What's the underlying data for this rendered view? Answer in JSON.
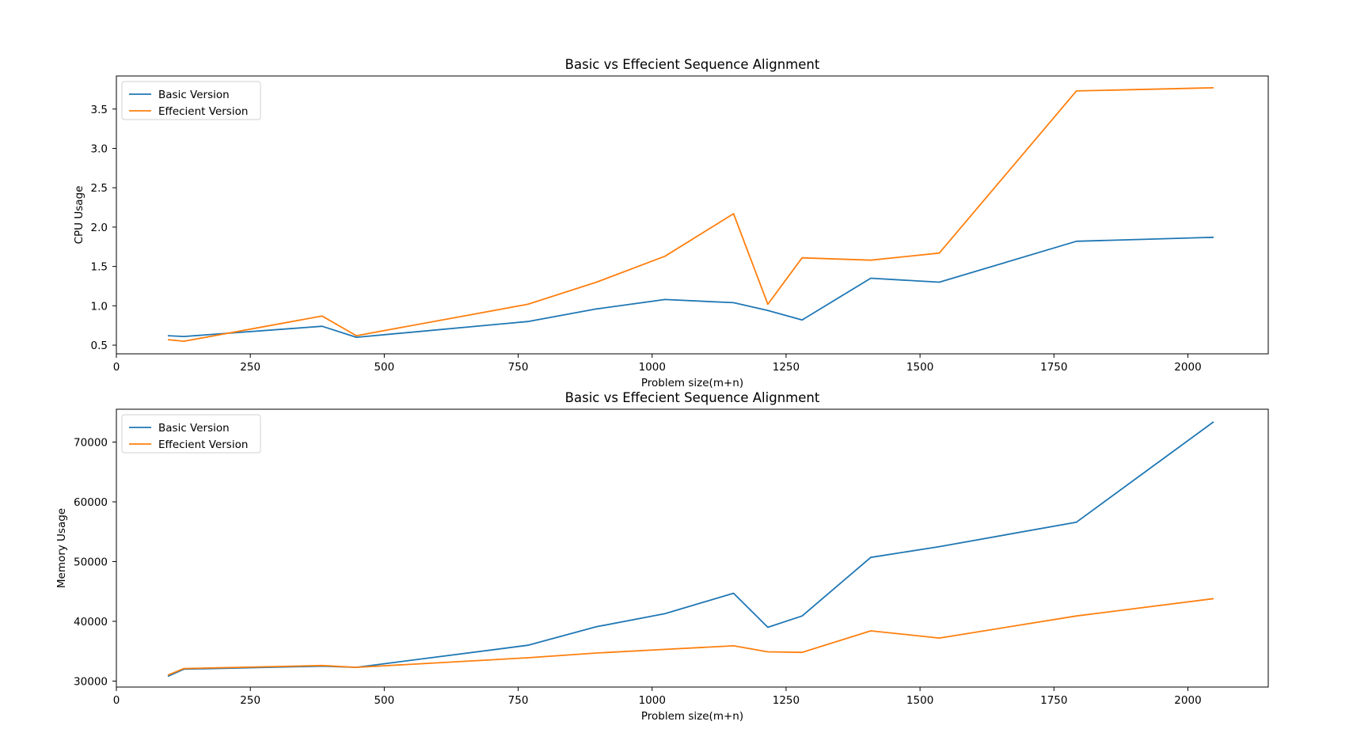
{
  "chart_data": [
    {
      "type": "line",
      "title": "Basic vs Effecient Sequence Alignment",
      "xlabel": "Problem size(m+n)",
      "ylabel": "CPU Usage",
      "xlim": [
        0,
        2150
      ],
      "ylim": [
        0.39,
        3.92
      ],
      "xticks": [
        0,
        250,
        500,
        750,
        1000,
        1250,
        1500,
        1750,
        2000
      ],
      "yticks": [
        0.5,
        1.0,
        1.5,
        2.0,
        2.5,
        3.0,
        3.5
      ],
      "ytick_labels": [
        "0.5",
        "1.0",
        "1.5",
        "2.0",
        "2.5",
        "3.0",
        "3.5"
      ],
      "legend_position": "upper-left",
      "grid": false,
      "x": [
        96,
        126,
        384,
        448,
        768,
        896,
        1024,
        1152,
        1216,
        1280,
        1408,
        1536,
        1792,
        2048
      ],
      "series": [
        {
          "name": "Basic Version",
          "color": "#1f77b4",
          "values": [
            0.62,
            0.61,
            0.74,
            0.6,
            0.8,
            0.96,
            1.08,
            1.04,
            0.94,
            0.82,
            1.35,
            1.3,
            1.82,
            1.87
          ]
        },
        {
          "name": "Effecient Version",
          "color": "#ff7f0e",
          "values": [
            0.57,
            0.55,
            0.87,
            0.62,
            1.02,
            1.3,
            1.63,
            2.17,
            1.02,
            1.61,
            1.58,
            1.67,
            3.73,
            3.77
          ]
        }
      ]
    },
    {
      "type": "line",
      "title": "Basic vs Effecient Sequence Alignment",
      "xlabel": "Problem size(m+n)",
      "ylabel": "Memory  Usage",
      "xlim": [
        0,
        2150
      ],
      "ylim": [
        29000,
        75500
      ],
      "xticks": [
        0,
        250,
        500,
        750,
        1000,
        1250,
        1500,
        1750,
        2000
      ],
      "yticks": [
        30000,
        40000,
        50000,
        60000,
        70000
      ],
      "ytick_labels": [
        "30000",
        "40000",
        "50000",
        "60000",
        "70000"
      ],
      "legend_position": "upper-left",
      "grid": false,
      "x": [
        96,
        126,
        384,
        448,
        768,
        896,
        1024,
        1152,
        1216,
        1280,
        1408,
        1536,
        1792,
        2048
      ],
      "series": [
        {
          "name": "Basic Version",
          "color": "#1f77b4",
          "values": [
            30800,
            32000,
            32500,
            32300,
            36000,
            39100,
            41300,
            44700,
            39000,
            40900,
            50700,
            52500,
            56600,
            73400
          ]
        },
        {
          "name": "Effecient Version",
          "color": "#ff7f0e",
          "values": [
            31000,
            32100,
            32600,
            32300,
            33900,
            34700,
            35300,
            35900,
            34900,
            34800,
            38400,
            37200,
            40900,
            43800
          ]
        }
      ]
    }
  ]
}
